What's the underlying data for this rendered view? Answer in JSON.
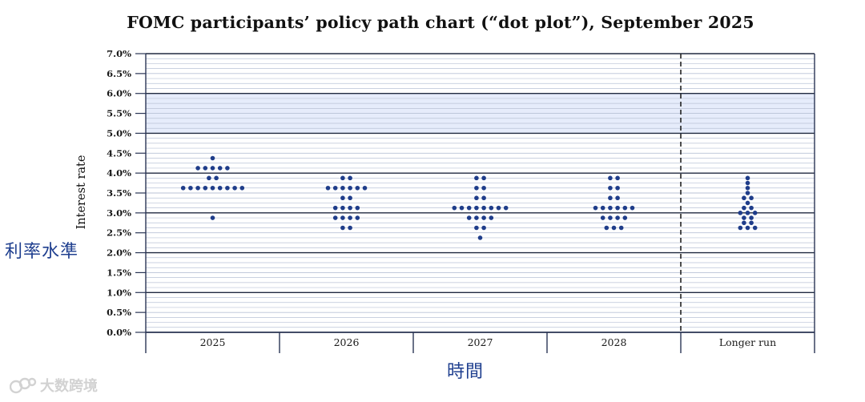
{
  "chart_data": {
    "type": "scatter",
    "title": "FOMC participants’ policy path chart (“dot plot”), September 2025",
    "ylabel": "Interest rate",
    "xlabel": "",
    "ylim": [
      0,
      7
    ],
    "yticks": [
      "0.0%",
      "0.5%",
      "1.0%",
      "1.5%",
      "2.0%",
      "2.5%",
      "3.0%",
      "3.5%",
      "4.0%",
      "4.5%",
      "5.0%",
      "5.5%",
      "6.0%",
      "6.5%",
      "7.0%"
    ],
    "categories": [
      "2025",
      "2026",
      "2027",
      "2028",
      "Longer run"
    ],
    "grid": true,
    "dots": [
      {
        "category": "2025",
        "values": [
          4.375,
          4.125,
          4.125,
          4.125,
          4.125,
          4.125,
          3.875,
          3.875,
          3.625,
          3.625,
          3.625,
          3.625,
          3.625,
          3.625,
          3.625,
          3.625,
          3.625,
          2.875
        ]
      },
      {
        "category": "2026",
        "values": [
          3.875,
          3.875,
          3.625,
          3.625,
          3.625,
          3.625,
          3.625,
          3.625,
          3.375,
          3.375,
          3.125,
          3.125,
          3.125,
          3.125,
          2.875,
          2.875,
          2.875,
          2.875,
          2.625,
          2.625
        ]
      },
      {
        "category": "2027",
        "values": [
          3.875,
          3.875,
          3.625,
          3.625,
          3.375,
          3.375,
          3.125,
          3.125,
          3.125,
          3.125,
          3.125,
          3.125,
          3.125,
          3.125,
          2.875,
          2.875,
          2.875,
          2.875,
          2.625,
          2.625,
          2.375
        ]
      },
      {
        "category": "2028",
        "values": [
          3.875,
          3.875,
          3.625,
          3.625,
          3.375,
          3.375,
          3.125,
          3.125,
          3.125,
          3.125,
          3.125,
          3.125,
          2.875,
          2.875,
          2.875,
          2.875,
          2.625,
          2.625,
          2.625
        ]
      },
      {
        "category": "Longer run",
        "values": [
          3.875,
          3.75,
          3.625,
          3.5,
          3.375,
          3.375,
          3.25,
          3.125,
          3.125,
          3.0,
          3.0,
          3.0,
          2.875,
          2.875,
          2.75,
          2.75,
          2.625,
          2.625,
          2.625
        ]
      }
    ],
    "separator_before": "Longer run",
    "colors": {
      "dot": "#1f3d8a",
      "band": "#e6ecfb",
      "grid_major": "#202a40",
      "grid_minor": "#b9c2d6",
      "axis": "#2a3555"
    }
  },
  "annotations": {
    "ylabel_zh": "利率水準",
    "xlabel_zh": "時間"
  },
  "watermark": {
    "text": "大数跨境",
    "icon": "logo-icon"
  }
}
